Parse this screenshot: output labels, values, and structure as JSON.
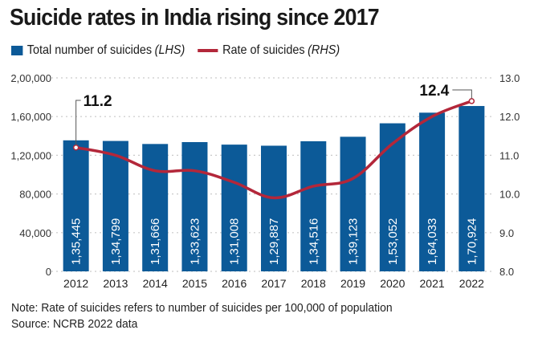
{
  "chart_data": {
    "type": "bar",
    "title": "Suicide rates in India rising since 2017",
    "legend": {
      "placement": "top-left",
      "items": [
        {
          "label": "Total number of suicides",
          "suffix": "(LHS)",
          "kind": "bar",
          "color": "#0c5a98"
        },
        {
          "label": "Rate of suicides",
          "suffix": "(RHS)",
          "kind": "line",
          "color": "#b3273a"
        }
      ]
    },
    "categories": [
      "2012",
      "2013",
      "2014",
      "2015",
      "2016",
      "2017",
      "2018",
      "2019",
      "2020",
      "2021",
      "2022"
    ],
    "series": [
      {
        "name": "Total number of suicides (LHS)",
        "type": "bar",
        "axis": "left",
        "values": [
          135445,
          134799,
          131666,
          133623,
          131008,
          129887,
          134516,
          139123,
          153052,
          164033,
          170924
        ],
        "labels": [
          "1,35,445",
          "1,34,799",
          "1,31,666",
          "1,33,623",
          "1,31,008",
          "1,29,887",
          "1,34,516",
          "1,39,123",
          "1,53,052",
          "1,64,033",
          "1,70,924"
        ]
      },
      {
        "name": "Rate of suicides (RHS)",
        "type": "line",
        "axis": "right",
        "values": [
          11.2,
          11.0,
          10.6,
          10.6,
          10.3,
          9.9,
          10.2,
          10.4,
          11.3,
          12.0,
          12.4
        ]
      }
    ],
    "annotations": [
      {
        "category": "2012",
        "text": "11.2"
      },
      {
        "category": "2022",
        "text": "12.4"
      }
    ],
    "left_axis": {
      "range": [
        0,
        200000
      ],
      "ticks": [
        0,
        40000,
        80000,
        120000,
        160000,
        200000
      ],
      "tick_labels": [
        "0",
        "40,000",
        "80,000",
        "1,20,000",
        "1,60,000",
        "2,00,000"
      ]
    },
    "right_axis": {
      "range": [
        8.0,
        13.0
      ],
      "ticks": [
        8,
        9,
        10,
        11,
        12,
        13
      ],
      "tick_labels": [
        "8.0",
        "9.0",
        "10.0",
        "11.0",
        "12.0",
        "13.0"
      ]
    },
    "grid": true,
    "xlabel": "",
    "ylabel": ""
  },
  "note": "Note: Rate of suicides refers to number of suicides per 100,000 of population",
  "source": "Source: NCRB 2022 data"
}
